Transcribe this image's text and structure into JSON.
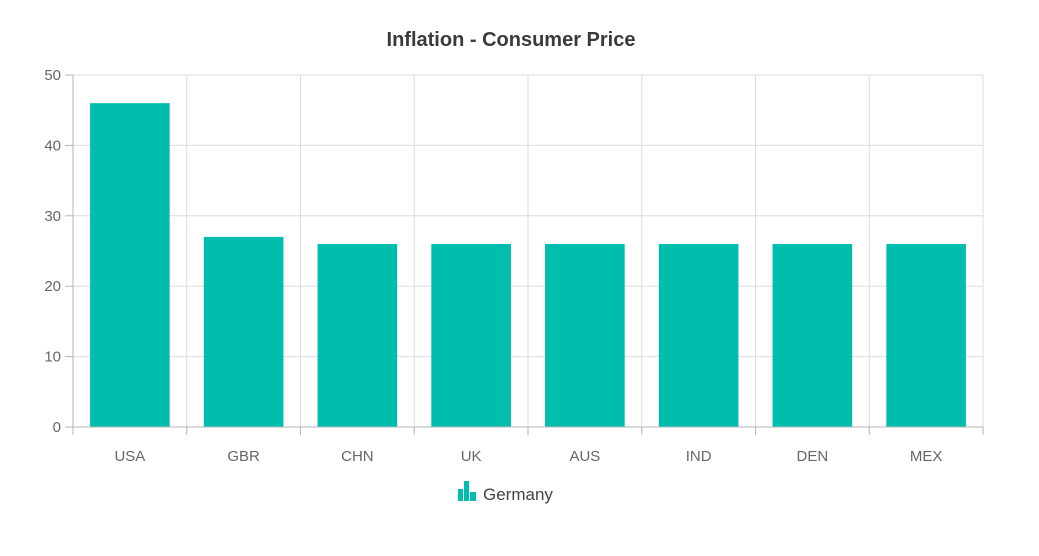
{
  "chart_data": {
    "type": "bar",
    "title": "Inflation - Consumer Price",
    "xlabel": "",
    "ylabel": "",
    "categories": [
      "USA",
      "GBR",
      "CHN",
      "UK",
      "AUS",
      "IND",
      "DEN",
      "MEX"
    ],
    "series": [
      {
        "name": "Germany",
        "values": [
          46,
          27,
          26,
          26,
          26,
          26,
          26,
          26
        ]
      }
    ],
    "ylim": [
      0,
      50
    ],
    "yticks": [
      0,
      10,
      20,
      30,
      40,
      50
    ],
    "grid": true,
    "legend_position": "bottom-center",
    "colors": {
      "bar": "#00BDAE",
      "grid": "#dcdcdc",
      "axis": "#b5b5b5"
    }
  }
}
